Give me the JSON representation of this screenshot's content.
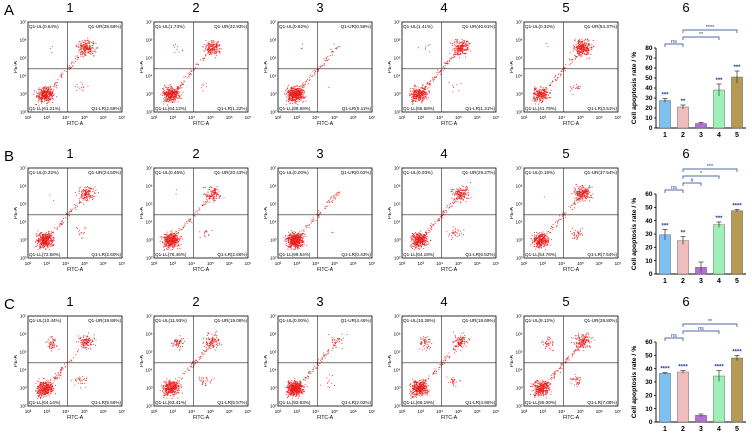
{
  "rows": [
    {
      "letter": "A",
      "panels": [
        {
          "label": "1",
          "q": {
            "UL": "Q1-UL(0.64%)",
            "UR": "Q1-UR(35.58%)",
            "LL": "Q1-LL(61.21%)",
            "LR": "Q1-LR(2.58%)"
          }
        },
        {
          "label": "2",
          "q": {
            "UL": "Q1-UL(1.73%)",
            "UR": "Q1-UR(32.93%)",
            "LL": "Q1-LL(64.12%)",
            "LR": "Q1-LR(1.22%)"
          }
        },
        {
          "label": "3",
          "q": {
            "UL": "Q1-UL(0.62%)",
            "UR": "Q1-UR(0.58%)",
            "LL": "Q1-LL(88.69%)",
            "LR": "Q1-LR(0.11%)"
          }
        },
        {
          "label": "4",
          "q": {
            "UL": "Q1-UL(1.41%)",
            "UR": "Q1-UR(40.61%)",
            "LL": "Q1-LL(56.68%)",
            "LR": "Q1-LR(1.31%)"
          }
        },
        {
          "label": "5",
          "q": {
            "UL": "Q1-UL(0.32%)",
            "UR": "Q1-UR(54.37%)",
            "LL": "Q1-LL(41.79%)",
            "LR": "Q1-LR(3.51%)"
          }
        }
      ]
    },
    {
      "letter": "B",
      "panels": [
        {
          "label": "1",
          "q": {
            "UL": "Q1-UL(0.32%)",
            "UR": "Q1-UR(24.50%)",
            "LL": "Q1-LL(72.58%)",
            "LR": "Q1-LR(2.60%)"
          }
        },
        {
          "label": "2",
          "q": {
            "UL": "Q1-UL(0.46%)",
            "UR": "Q1-UR(20.43%)",
            "LL": "Q1-LL(76.46%)",
            "LR": "Q1-LR(2.66%)"
          }
        },
        {
          "label": "3",
          "q": {
            "UL": "Q1-UL(0.00%)",
            "UR": "Q1-UR(0.02%)",
            "LL": "Q1-LL(99.54%)",
            "LR": "Q1-LR(0.43%)"
          }
        },
        {
          "label": "4",
          "q": {
            "UL": "Q1-UL(0.03%)",
            "UR": "Q1-UR(29.27%)",
            "LL": "Q1-LL(64.18%)",
            "LR": "Q1-LR(6.52%)"
          }
        },
        {
          "label": "5",
          "q": {
            "UL": "Q1-UL(0.16%)",
            "UR": "Q1-UR(37.54%)",
            "LL": "Q1-LL(54.76%)",
            "LR": "Q1-LR(7.54%)"
          }
        }
      ]
    },
    {
      "letter": "C",
      "panels": [
        {
          "label": "1",
          "q": {
            "UL": "Q1-UL(10.44%)",
            "UR": "Q1-UR(19.86%)",
            "LL": "Q1-LL(64.14%)",
            "LR": "Q1-LR(5.56%)"
          }
        },
        {
          "label": "2",
          "q": {
            "UL": "Q1-UL(11.93%)",
            "UR": "Q1-UR(19.08%)",
            "LL": "Q1-LL(63.41%)",
            "LR": "Q1-LR(5.57%)"
          }
        },
        {
          "label": "3",
          "q": {
            "UL": "Q1-UL(0.00%)",
            "UR": "Q1-UR(4.46%)",
            "LL": "Q1-LL(93.53%)",
            "LR": "Q1-LR(2.02%)"
          }
        },
        {
          "label": "4",
          "q": {
            "UL": "Q1-UL(10.26%)",
            "UR": "Q1-UR(18.69%)",
            "LL": "Q1-LL(66.19%)",
            "LR": "Q1-LR(4.86%)"
          }
        },
        {
          "label": "5",
          "q": {
            "UL": "Q1-UL(9.12%)",
            "UR": "Q1-UR(28.80%)",
            "LL": "Q1-LL(55.00%)",
            "LR": "Q1-LR(7.08%)"
          }
        }
      ]
    }
  ],
  "flow_axes": {
    "xlabel": "FITC-A",
    "ylabel": "PE-A",
    "xticks": [
      "10²",
      "10³",
      "10⁴",
      "10⁵",
      "10⁶",
      "10⁷"
    ],
    "yticks": [
      "10⁷",
      "10⁶",
      "10⁵",
      "10⁴",
      "10³",
      "10²"
    ]
  },
  "dot_color": "#e8201e",
  "chart_data": [
    {
      "type": "bar",
      "panel_label": "6",
      "categories": [
        "1",
        "2",
        "3",
        "4",
        "5"
      ],
      "values": [
        27.5,
        21,
        4.5,
        38,
        51
      ],
      "errors": [
        2,
        2,
        1,
        6,
        6
      ],
      "sig_labels": [
        "***",
        "**",
        "",
        "***",
        "***"
      ],
      "ylabel": "Cell apoptosis rate / %",
      "ylim": [
        0,
        80
      ],
      "yticks": [
        "0",
        "10",
        "20",
        "30",
        "40",
        "50",
        "60",
        "70",
        "80"
      ],
      "colors": [
        "#7dc1ee",
        "#f0bcbc",
        "#b36fd6",
        "#9ef0b6",
        "#b59a55"
      ],
      "brackets": [
        {
          "from": "1",
          "to": "2",
          "label": "ns"
        },
        {
          "from": "2",
          "to": "4",
          "label": "**"
        },
        {
          "from": "2",
          "to": "5",
          "label": "****"
        }
      ]
    },
    {
      "type": "bar",
      "panel_label": "6",
      "categories": [
        "1",
        "2",
        "3",
        "4",
        "5"
      ],
      "values": [
        29.5,
        25,
        5,
        37,
        47.5
      ],
      "errors": [
        4,
        3,
        4,
        2,
        1
      ],
      "sig_labels": [
        "***",
        "**",
        "",
        "***",
        "****"
      ],
      "ylabel": "Cell apoptosis rate / %",
      "ylim": [
        0,
        60
      ],
      "yticks": [
        "0",
        "10",
        "20",
        "30",
        "40",
        "50",
        "60"
      ],
      "colors": [
        "#7dc1ee",
        "#f0bcbc",
        "#b36fd6",
        "#9ef0b6",
        "#b59a55"
      ],
      "brackets": [
        {
          "from": "1",
          "to": "2",
          "label": "ns"
        },
        {
          "from": "2",
          "to": "3",
          "label": "#"
        },
        {
          "from": "2",
          "to": "4",
          "label": "*"
        },
        {
          "from": "2",
          "to": "5",
          "label": "***"
        }
      ]
    },
    {
      "type": "bar",
      "panel_label": "6",
      "categories": [
        "1",
        "2",
        "3",
        "4",
        "5"
      ],
      "values": [
        36.5,
        37.5,
        5,
        34.5,
        48
      ],
      "errors": [
        0.5,
        1,
        1,
        4,
        2
      ],
      "sig_labels": [
        "****",
        "****",
        "",
        "****",
        "****"
      ],
      "ylabel": "Cell apoptosis rate / %",
      "ylim": [
        0,
        60
      ],
      "yticks": [
        "0",
        "10",
        "20",
        "30",
        "40",
        "50",
        "60"
      ],
      "colors": [
        "#7dc1ee",
        "#f0bcbc",
        "#b36fd6",
        "#9ef0b6",
        "#b59a55"
      ],
      "brackets": [
        {
          "from": "1",
          "to": "2",
          "label": "ns"
        },
        {
          "from": "2",
          "to": "4",
          "label": "ns"
        },
        {
          "from": "2",
          "to": "5",
          "label": "**"
        }
      ]
    }
  ]
}
